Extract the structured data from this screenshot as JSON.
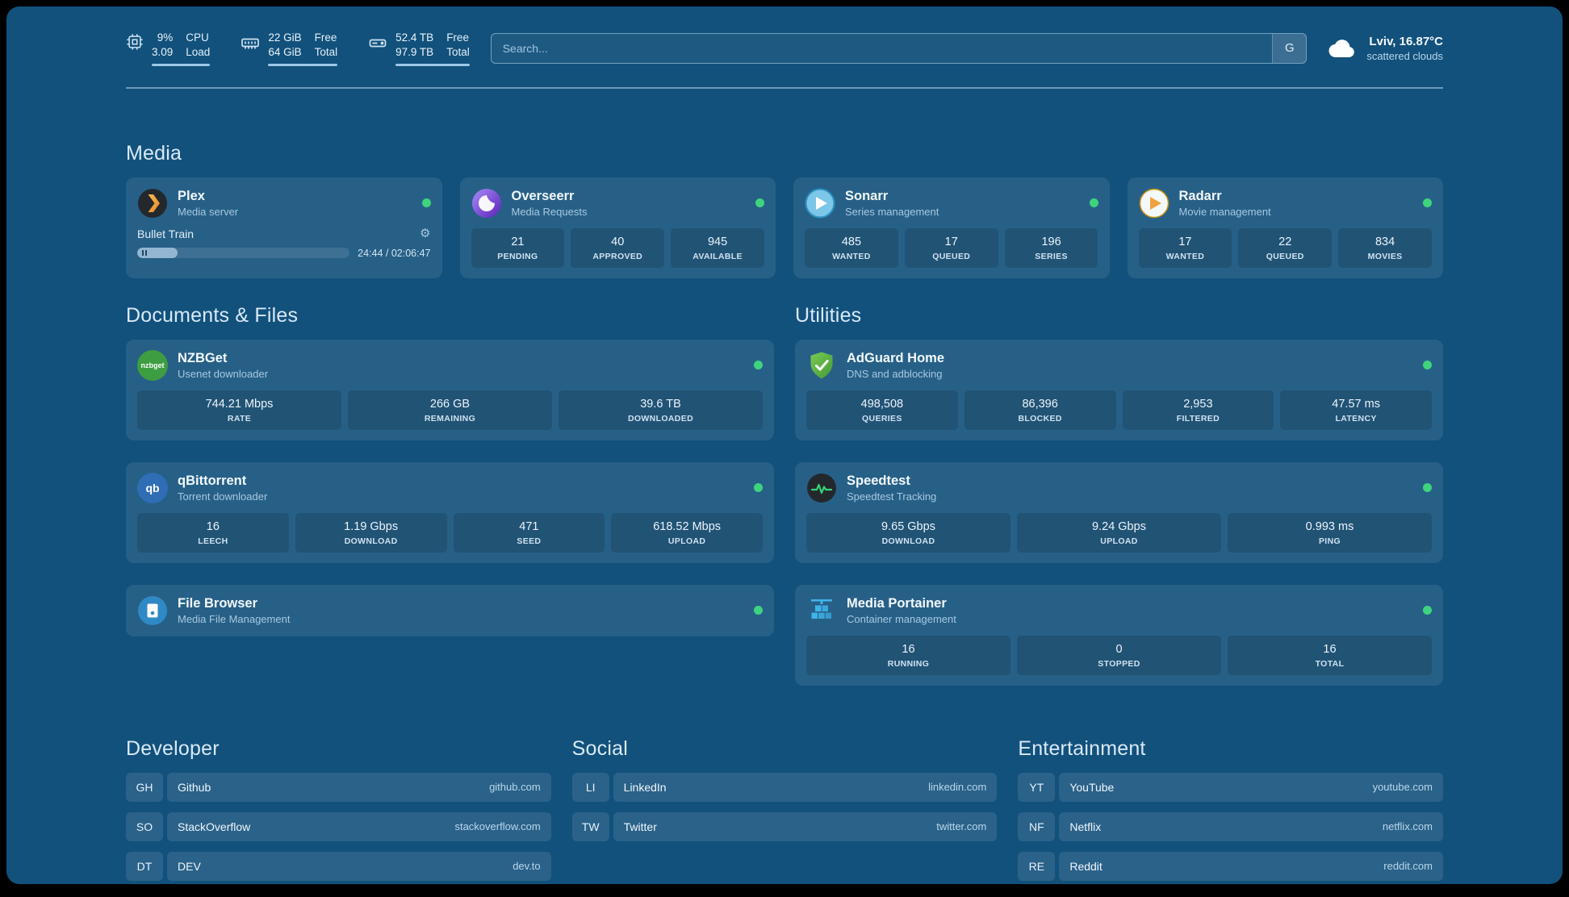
{
  "colors": {
    "page_bg": "#12517c",
    "status_green": "#3ed47e",
    "heading": "#d9e9f6"
  },
  "topbar": {
    "cpu": {
      "value1": "9%",
      "value2": "3.09",
      "label1": "CPU",
      "label2": "Load"
    },
    "memory": {
      "value1": "22 GiB",
      "value2": "64 GiB",
      "label1": "Free",
      "label2": "Total"
    },
    "disk": {
      "value1": "52.4 TB",
      "value2": "97.9 TB",
      "label1": "Free",
      "label2": "Total"
    },
    "search": {
      "placeholder": "Search...",
      "provider": "G"
    },
    "weather": {
      "location": "Lviv, 16.87°C",
      "condition": "scattered clouds"
    }
  },
  "media": {
    "title": "Media",
    "plex": {
      "name": "Plex",
      "subtitle": "Media server",
      "now_playing": "Bullet Train",
      "time": "24:44 / 02:06:47",
      "progress_percent": 19
    },
    "overseerr": {
      "name": "Overseerr",
      "subtitle": "Media Requests",
      "stats": [
        {
          "value": "21",
          "label": "PENDING"
        },
        {
          "value": "40",
          "label": "APPROVED"
        },
        {
          "value": "945",
          "label": "AVAILABLE"
        }
      ]
    },
    "sonarr": {
      "name": "Sonarr",
      "subtitle": "Series management",
      "stats": [
        {
          "value": "485",
          "label": "WANTED"
        },
        {
          "value": "17",
          "label": "QUEUED"
        },
        {
          "value": "196",
          "label": "SERIES"
        }
      ]
    },
    "radarr": {
      "name": "Radarr",
      "subtitle": "Movie management",
      "stats": [
        {
          "value": "17",
          "label": "WANTED"
        },
        {
          "value": "22",
          "label": "QUEUED"
        },
        {
          "value": "834",
          "label": "MOVIES"
        }
      ]
    }
  },
  "documents": {
    "title": "Documents & Files",
    "nzbget": {
      "name": "NZBGet",
      "subtitle": "Usenet downloader",
      "icon_text": "nzbget",
      "stats": [
        {
          "value": "744.21 Mbps",
          "label": "RATE"
        },
        {
          "value": "266 GB",
          "label": "REMAINING"
        },
        {
          "value": "39.6 TB",
          "label": "DOWNLOADED"
        }
      ]
    },
    "qbittorrent": {
      "name": "qBittorrent",
      "subtitle": "Torrent downloader",
      "icon_text": "qb",
      "stats": [
        {
          "value": "16",
          "label": "LEECH"
        },
        {
          "value": "1.19 Gbps",
          "label": "DOWNLOAD"
        },
        {
          "value": "471",
          "label": "SEED"
        },
        {
          "value": "618.52 Mbps",
          "label": "UPLOAD"
        }
      ]
    },
    "filebrowser": {
      "name": "File Browser",
      "subtitle": "Media File Management"
    }
  },
  "utilities": {
    "title": "Utilities",
    "adguard": {
      "name": "AdGuard Home",
      "subtitle": "DNS and adblocking",
      "stats": [
        {
          "value": "498,508",
          "label": "QUERIES"
        },
        {
          "value": "86,396",
          "label": "BLOCKED"
        },
        {
          "value": "2,953",
          "label": "FILTERED"
        },
        {
          "value": "47.57 ms",
          "label": "LATENCY"
        }
      ]
    },
    "speedtest": {
      "name": "Speedtest",
      "subtitle": "Speedtest Tracking",
      "stats": [
        {
          "value": "9.65 Gbps",
          "label": "DOWNLOAD"
        },
        {
          "value": "9.24 Gbps",
          "label": "UPLOAD"
        },
        {
          "value": "0.993 ms",
          "label": "PING"
        }
      ]
    },
    "portainer": {
      "name": "Media Portainer",
      "subtitle": "Container management",
      "stats": [
        {
          "value": "16",
          "label": "RUNNING"
        },
        {
          "value": "0",
          "label": "STOPPED"
        },
        {
          "value": "16",
          "label": "TOTAL"
        }
      ]
    }
  },
  "bookmarks": {
    "developer": {
      "title": "Developer",
      "items": [
        {
          "abbr": "GH",
          "name": "Github",
          "domain": "github.com"
        },
        {
          "abbr": "SO",
          "name": "StackOverflow",
          "domain": "stackoverflow.com"
        },
        {
          "abbr": "DT",
          "name": "DEV",
          "domain": "dev.to"
        }
      ]
    },
    "social": {
      "title": "Social",
      "items": [
        {
          "abbr": "LI",
          "name": "LinkedIn",
          "domain": "linkedin.com"
        },
        {
          "abbr": "TW",
          "name": "Twitter",
          "domain": "twitter.com"
        }
      ]
    },
    "entertainment": {
      "title": "Entertainment",
      "items": [
        {
          "abbr": "YT",
          "name": "YouTube",
          "domain": "youtube.com"
        },
        {
          "abbr": "NF",
          "name": "Netflix",
          "domain": "netflix.com"
        },
        {
          "abbr": "RE",
          "name": "Reddit",
          "domain": "reddit.com"
        }
      ]
    }
  }
}
